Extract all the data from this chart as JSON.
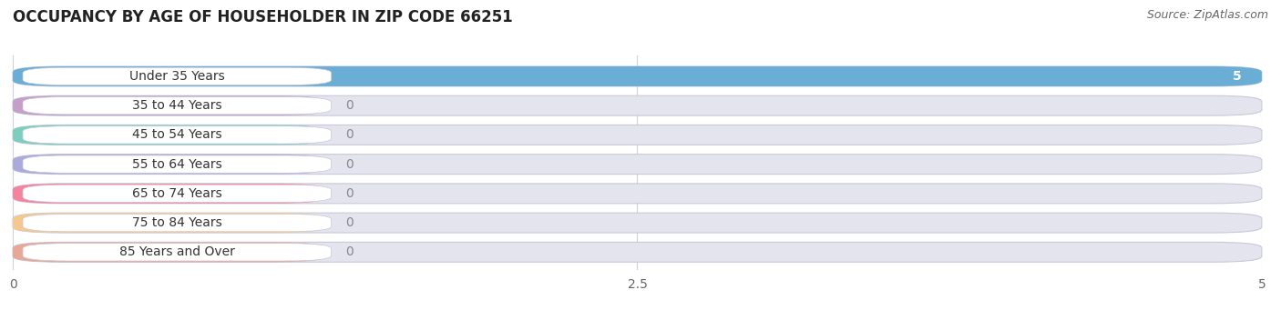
{
  "title": "OCCUPANCY BY AGE OF HOUSEHOLDER IN ZIP CODE 66251",
  "source": "Source: ZipAtlas.com",
  "categories": [
    "Under 35 Years",
    "35 to 44 Years",
    "45 to 54 Years",
    "55 to 64 Years",
    "65 to 74 Years",
    "75 to 84 Years",
    "85 Years and Over"
  ],
  "values": [
    5,
    0,
    0,
    0,
    0,
    0,
    0
  ],
  "bar_colors": [
    "#6aaed6",
    "#c4a0c8",
    "#7ecec0",
    "#aaaadd",
    "#f4849c",
    "#f5c890",
    "#e8a898"
  ],
  "bar_bg_color": "#e4e4ee",
  "label_bg_color": "#ffffff",
  "xlim": [
    0,
    5
  ],
  "xticks": [
    0,
    2.5,
    5
  ],
  "title_fontsize": 12,
  "label_fontsize": 10,
  "tick_fontsize": 10,
  "source_fontsize": 9,
  "fig_width": 14.06,
  "fig_height": 3.41,
  "dpi": 100,
  "bg_color": "#ffffff",
  "grid_color": "#d0d0d8",
  "value_color_on_bar": "#ffffff",
  "value_color_off_bar": "#888888",
  "label_text_color": "#333333"
}
